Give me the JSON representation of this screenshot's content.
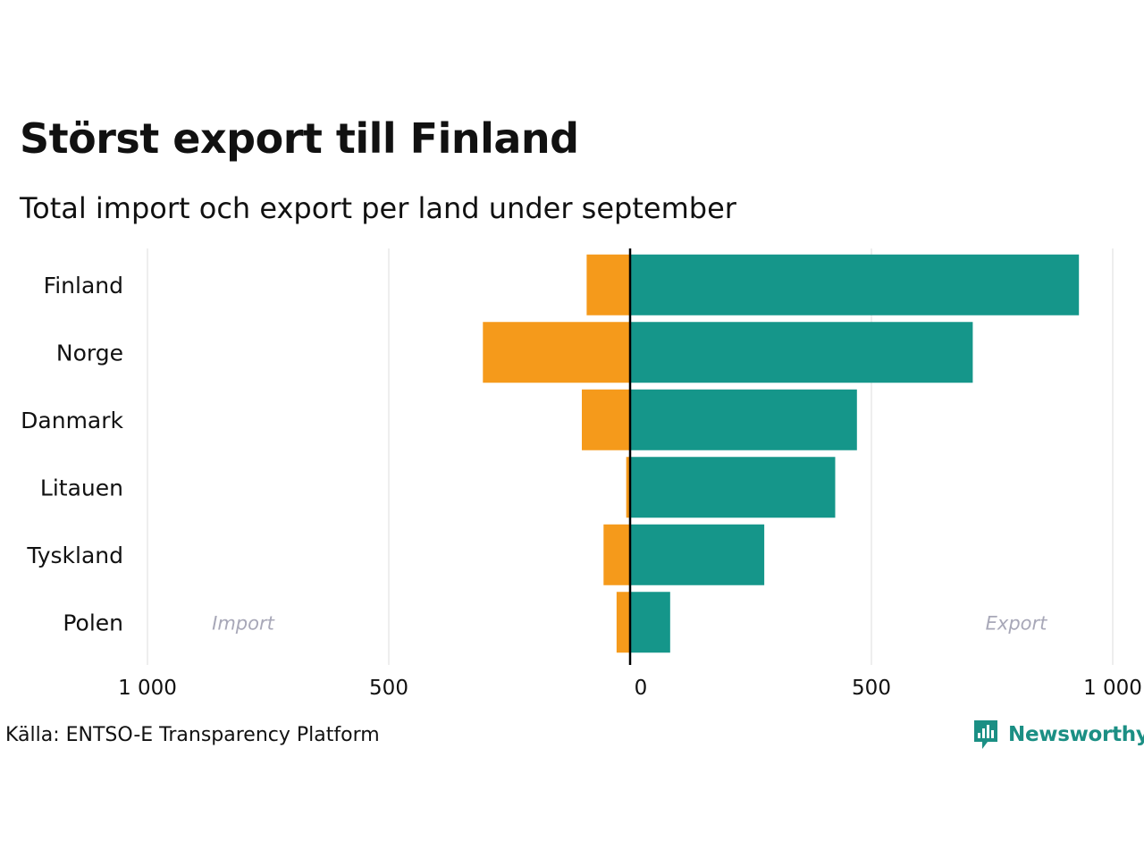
{
  "header": {
    "title": "Störst export till Finland",
    "subtitle": "Total import och export per land under september"
  },
  "chart_data": {
    "type": "bar",
    "orientation": "horizontal-diverging",
    "categories": [
      "Finland",
      "Norge",
      "Danmark",
      "Litauen",
      "Tyskland",
      "Polen"
    ],
    "series": [
      {
        "name": "Import",
        "color": "#f59a1b",
        "values": [
          -90,
          -305,
          -100,
          -8,
          -55,
          -28
        ]
      },
      {
        "name": "Export",
        "color": "#15968a",
        "values": [
          930,
          710,
          470,
          425,
          278,
          83
        ]
      }
    ],
    "xlim": [
      -1000,
      1000
    ],
    "xticks": [
      -1000,
      -500,
      0,
      500,
      1000
    ],
    "xtick_labels": [
      "1 000",
      "500",
      "0",
      "500",
      "1 000"
    ],
    "side_labels": {
      "left": "Import",
      "right": "Export"
    },
    "grid": true,
    "zero_line_color": "#000000",
    "grid_color": "#e8e8e8",
    "side_label_color": "#a8a8b8"
  },
  "footer": {
    "source": "Källa: ENTSO-E Transparency Platform",
    "logo_text": "Newsworthy",
    "brand_color": "#1b8f84"
  }
}
